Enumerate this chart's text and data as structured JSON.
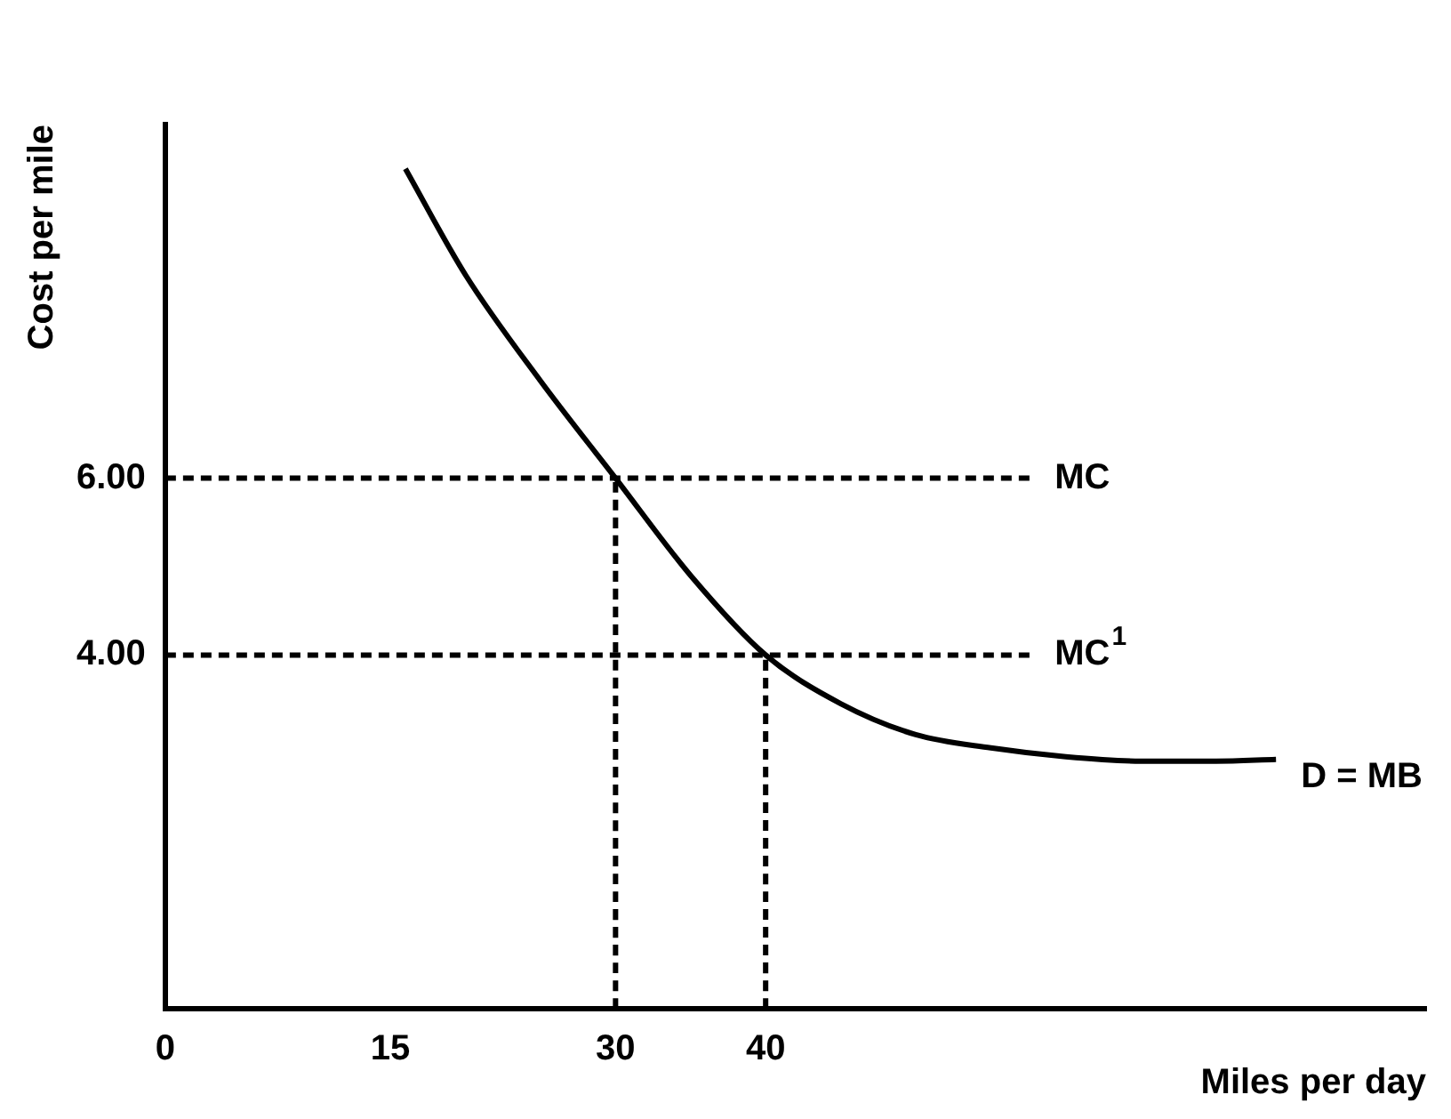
{
  "chart_data": {
    "type": "line",
    "xlabel": "Miles per day",
    "ylabel": "Cost per mile",
    "xlim": [
      0,
      84
    ],
    "ylim": [
      0,
      10
    ],
    "xticks": [
      {
        "value": 0,
        "label": "0"
      },
      15,
      30,
      40
    ],
    "yticks": [
      {
        "value": 4,
        "label": "4.00"
      },
      {
        "value": 6,
        "label": "6.00"
      }
    ],
    "grid": false,
    "legend": false,
    "marker": "none",
    "series": [
      {
        "name": "D = MB",
        "color": "#000000",
        "line_style": "solid",
        "x": [
          16,
          20,
          25,
          30,
          35,
          40,
          45,
          50,
          55,
          60,
          65,
          70,
          74
        ],
        "values": [
          9.5,
          8.3,
          7.1,
          6,
          4.9,
          4,
          3.45,
          3.1,
          2.95,
          2.85,
          2.8,
          2.8,
          2.82
        ]
      },
      {
        "name": "MC",
        "color": "#000000",
        "line_style": "dashed",
        "x": [
          0,
          57.6
        ],
        "values": [
          6,
          6
        ]
      },
      {
        "name": "MC$^{1}$",
        "color": "#000000",
        "line_style": "dashed",
        "x": [
          0,
          57.6
        ],
        "values": [
          4,
          4
        ]
      },
      {
        "color": "#000000",
        "line_style": "dashed",
        "x": [
          30,
          30
        ],
        "values": [
          0,
          6
        ]
      },
      {
        "color": "#000000",
        "line_style": "dashed",
        "x": [
          40,
          40
        ],
        "values": [
          0,
          4
        ]
      }
    ]
  }
}
